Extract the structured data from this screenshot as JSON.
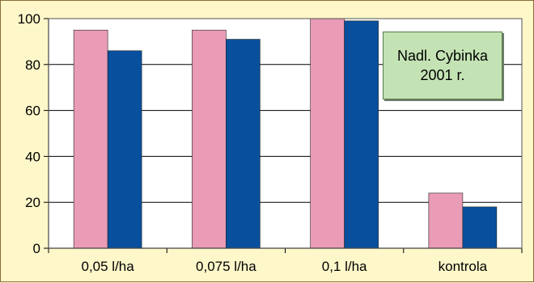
{
  "chart_data": {
    "type": "bar",
    "categories": [
      "0,05 l/ha",
      "0,075 l/ha",
      "0,1 l/ha",
      "kontrola"
    ],
    "series": [
      {
        "values": [
          95,
          95,
          100,
          24
        ]
      },
      {
        "values": [
          86,
          91,
          99,
          18
        ]
      }
    ],
    "ylim": [
      0,
      100
    ],
    "yticks": [
      0,
      20,
      40,
      60,
      80,
      100
    ],
    "grid": true,
    "colors": {
      "series_1": "#ea9bb6",
      "series_2": "#08509e",
      "background": "#fdf7c9",
      "gridline": "#000000",
      "annotation_fill": "#c4e3b4"
    },
    "annotation": {
      "line1": "Nadl. Cybinka",
      "line2": "2001 r."
    }
  }
}
